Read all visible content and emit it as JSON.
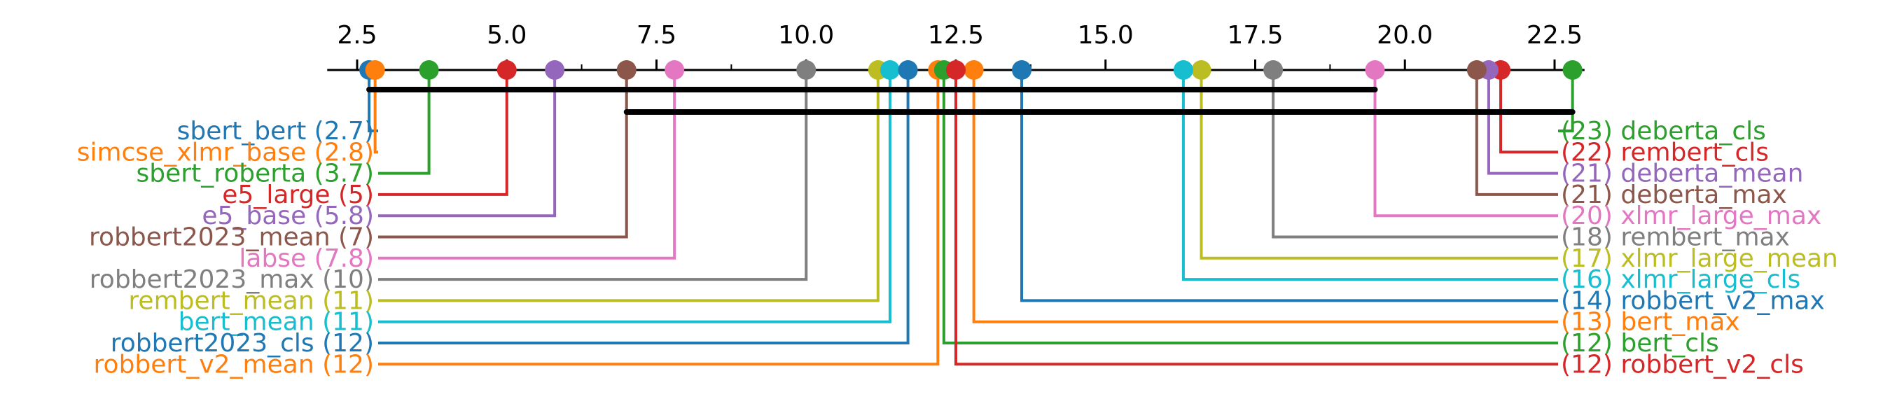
{
  "chart_data": {
    "type": "critical-difference-diagram",
    "axis": {
      "range": [
        2.0,
        23.0
      ],
      "ticks": [
        2.5,
        5.0,
        7.5,
        10.0,
        12.5,
        15.0,
        17.5,
        20.0,
        22.5
      ],
      "tick_labels": [
        "2.5",
        "5.0",
        "7.5",
        "10.0",
        "12.5",
        "15.0",
        "17.5",
        "20.0",
        "22.5"
      ],
      "minor_ticks": [
        3.75,
        6.25,
        8.75,
        11.25,
        13.75,
        16.25,
        18.75,
        21.25
      ]
    },
    "left_methods": [
      {
        "name": "sbert_bert",
        "rank": 2.7,
        "rank_label": "2.7",
        "color": "#1f77b4"
      },
      {
        "name": "simcse_xlmr_base",
        "rank": 2.8,
        "rank_label": "2.8",
        "color": "#ff7f0e"
      },
      {
        "name": "sbert_roberta",
        "rank": 3.7,
        "rank_label": "3.7",
        "color": "#2ca02c"
      },
      {
        "name": "e5_large",
        "rank": 5.0,
        "rank_label": "5",
        "color": "#d62728"
      },
      {
        "name": "e5_base",
        "rank": 5.8,
        "rank_label": "5.8",
        "color": "#9467bd"
      },
      {
        "name": "robbert2023_mean",
        "rank": 7.0,
        "rank_label": "7",
        "color": "#8c564b"
      },
      {
        "name": "labse",
        "rank": 7.8,
        "rank_label": "7.8",
        "color": "#e377c2"
      },
      {
        "name": "robbert2023_max",
        "rank": 10.0,
        "rank_label": "10",
        "color": "#7f7f7f"
      },
      {
        "name": "rembert_mean",
        "rank": 11.2,
        "rank_label": "11",
        "color": "#bcbd22"
      },
      {
        "name": "bert_mean",
        "rank": 11.4,
        "rank_label": "11",
        "color": "#17becf"
      },
      {
        "name": "robbert2023_cls",
        "rank": 11.7,
        "rank_label": "12",
        "color": "#1f77b4"
      },
      {
        "name": "robbert_v2_mean",
        "rank": 12.2,
        "rank_label": "12",
        "color": "#ff7f0e"
      }
    ],
    "right_methods": [
      {
        "name": "deberta_cls",
        "rank": 22.8,
        "rank_label": "23",
        "color": "#2ca02c"
      },
      {
        "name": "rembert_cls",
        "rank": 21.6,
        "rank_label": "22",
        "color": "#d62728"
      },
      {
        "name": "deberta_mean",
        "rank": 21.4,
        "rank_label": "21",
        "color": "#9467bd"
      },
      {
        "name": "deberta_max",
        "rank": 21.2,
        "rank_label": "21",
        "color": "#8c564b"
      },
      {
        "name": "xlmr_large_max",
        "rank": 19.5,
        "rank_label": "20",
        "color": "#e377c2"
      },
      {
        "name": "rembert_max",
        "rank": 17.8,
        "rank_label": "18",
        "color": "#7f7f7f"
      },
      {
        "name": "xlmr_large_mean",
        "rank": 16.6,
        "rank_label": "17",
        "color": "#bcbd22"
      },
      {
        "name": "xlmr_large_cls",
        "rank": 16.3,
        "rank_label": "16",
        "color": "#17becf"
      },
      {
        "name": "robbert_v2_max",
        "rank": 13.6,
        "rank_label": "14",
        "color": "#1f77b4"
      },
      {
        "name": "bert_max",
        "rank": 12.8,
        "rank_label": "13",
        "color": "#ff7f0e"
      },
      {
        "name": "bert_cls",
        "rank": 12.3,
        "rank_label": "12",
        "color": "#2ca02c"
      },
      {
        "name": "robbert_v2_cls",
        "rank": 12.5,
        "rank_label": "12",
        "color": "#d62728"
      }
    ],
    "cliques": [
      {
        "from": 2.7,
        "to": 19.5
      },
      {
        "from": 7.0,
        "to": 22.8
      }
    ]
  }
}
